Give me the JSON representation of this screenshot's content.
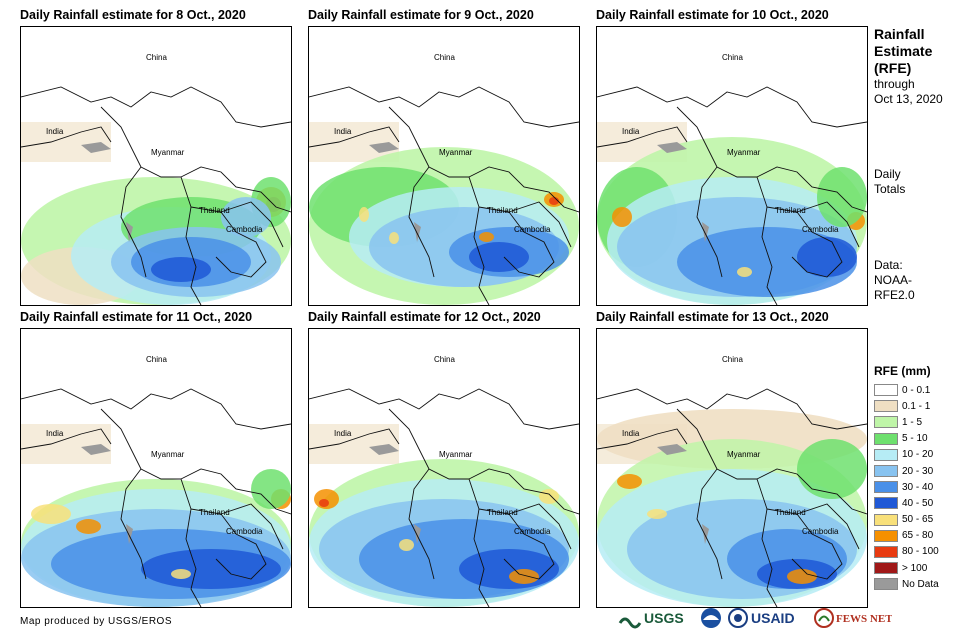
{
  "panels": [
    {
      "title": "Daily Rainfall estimate for 8 Oct., 2020",
      "day": 8
    },
    {
      "title": "Daily Rainfall estimate for 9 Oct., 2020",
      "day": 9
    },
    {
      "title": "Daily Rainfall estimate for 10 Oct., 2020",
      "day": 10
    },
    {
      "title": "Daily Rainfall estimate for 11 Oct., 2020",
      "day": 11
    },
    {
      "title": "Daily Rainfall estimate for 12 Oct., 2020",
      "day": 12
    },
    {
      "title": "Daily Rainfall estimate for 13 Oct., 2020",
      "day": 13
    }
  ],
  "map_labels": {
    "china": "China",
    "india": "India",
    "myanmar": "Myanmar",
    "thailand": "Thailand",
    "cambodia": "Cambodia"
  },
  "sidebar": {
    "title_line1": "Rainfall",
    "title_line2": "Estimate",
    "title_line3": "(RFE)",
    "through": "through",
    "date": "Oct 13, 2020",
    "daily1": "Daily",
    "daily2": "Totals",
    "data1": "Data:",
    "data2": "NOAA-",
    "data3": "RFE2.0"
  },
  "legend": {
    "title": "RFE (mm)",
    "items": [
      {
        "label": "0 - 0.1",
        "color": "#ffffff"
      },
      {
        "label": "0.1 - 1",
        "color": "#efdfc3"
      },
      {
        "label": "1 - 5",
        "color": "#bff5a8"
      },
      {
        "label": "5 - 10",
        "color": "#6ee06e"
      },
      {
        "label": "10 - 20",
        "color": "#b6ecf5"
      },
      {
        "label": "20 - 30",
        "color": "#88c3f0"
      },
      {
        "label": "30 - 40",
        "color": "#4a90e8"
      },
      {
        "label": "40 - 50",
        "color": "#1f58d6"
      },
      {
        "label": "50 - 65",
        "color": "#f8e07a"
      },
      {
        "label": "65 - 80",
        "color": "#f59000"
      },
      {
        "label": "80 - 100",
        "color": "#e83a10"
      },
      {
        "label": "> 100",
        "color": "#a01818"
      },
      {
        "label": "No Data",
        "color": "#9a9a9a"
      }
    ]
  },
  "credit": "Map produced by USGS/EROS",
  "logos": {
    "usgs": "USGS",
    "usaid": "USAID",
    "fewsnet": "FEWS NET"
  }
}
